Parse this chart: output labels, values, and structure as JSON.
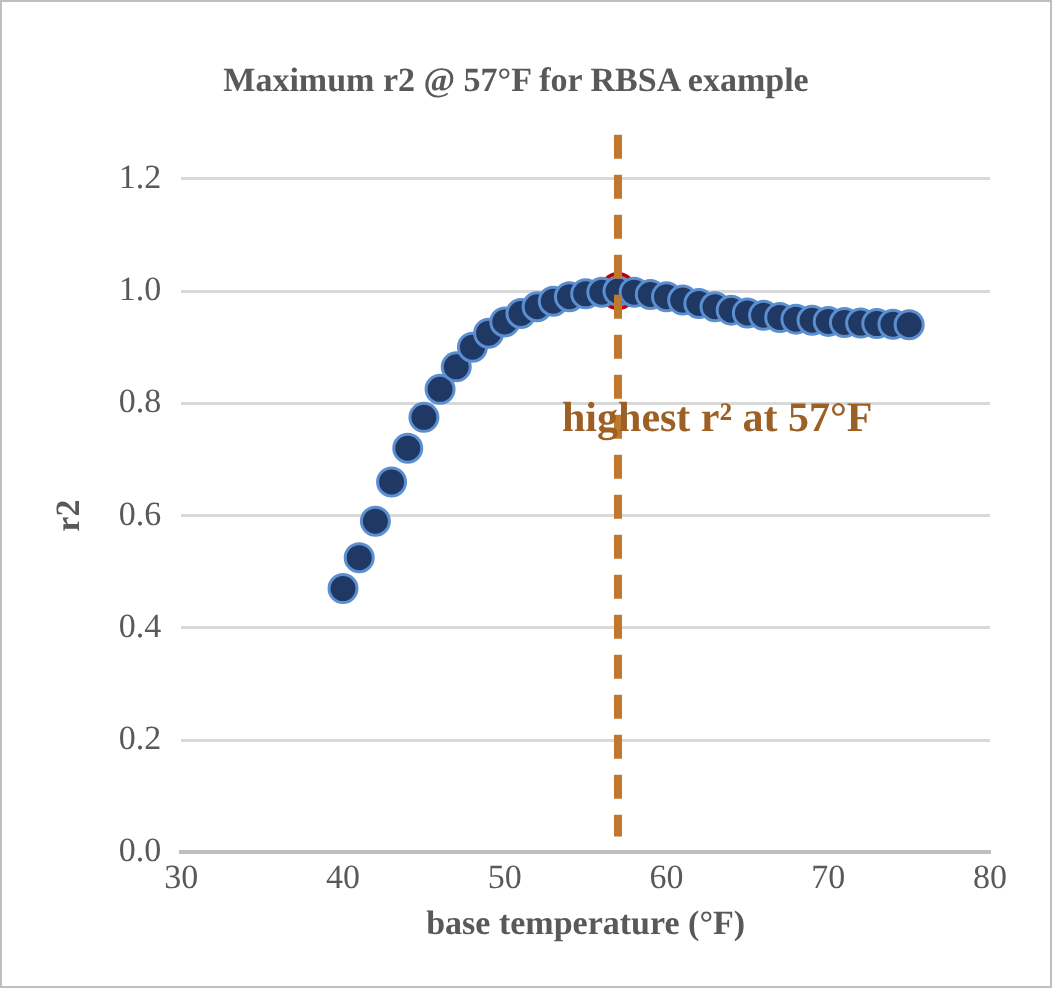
{
  "chart_data": {
    "type": "scatter",
    "title": "Maximum r2 @ 57°F for RBSA example",
    "xlabel": "base temperature (°F)",
    "ylabel": "r2",
    "x": [
      40,
      41,
      42,
      43,
      44,
      45,
      46,
      47,
      48,
      49,
      50,
      51,
      52,
      53,
      54,
      55,
      56,
      57,
      58,
      59,
      60,
      61,
      62,
      63,
      64,
      65,
      66,
      67,
      68,
      69,
      70,
      71,
      72,
      73,
      74,
      75
    ],
    "series": [
      {
        "color": "#203864",
        "values": [
          0.47,
          0.525,
          0.59,
          0.66,
          0.72,
          0.775,
          0.825,
          0.865,
          0.9,
          0.925,
          0.945,
          0.96,
          0.972,
          0.982,
          0.99,
          0.995,
          0.998,
          1.0,
          0.998,
          0.994,
          0.99,
          0.984,
          0.978,
          0.972,
          0.966,
          0.961,
          0.957,
          0.953,
          0.95,
          0.948,
          0.946,
          0.944,
          0.943,
          0.942,
          0.941,
          0.94
        ]
      },
      {
        "color": "#c00000",
        "x": [
          57
        ],
        "values": [
          1.0
        ]
      }
    ],
    "xlim": [
      30,
      80
    ],
    "xticks": [
      30,
      40,
      50,
      60,
      70,
      80
    ],
    "ylim": [
      0,
      1.2
    ],
    "yticks": [
      {
        "value": 0,
        "label": "0.0"
      },
      {
        "value": 0.2,
        "label": "0.2"
      },
      {
        "value": 0.4,
        "label": "0.4"
      },
      {
        "value": 0.6,
        "label": "0.6"
      },
      {
        "value": 0.8,
        "label": "0.8"
      },
      {
        "value": 1,
        "label": "1.0"
      },
      {
        "value": 1.2,
        "label": "1.2"
      }
    ],
    "grid": "y",
    "legend": false,
    "marker": "circle",
    "ref_lines": [
      {
        "axis": "x",
        "value": 57,
        "color": "#c0782e",
        "line_style": "dashed"
      }
    ],
    "annotations": [
      {
        "text": "highest r² at 57°F",
        "x": 57,
        "y": 0.77
      }
    ]
  }
}
